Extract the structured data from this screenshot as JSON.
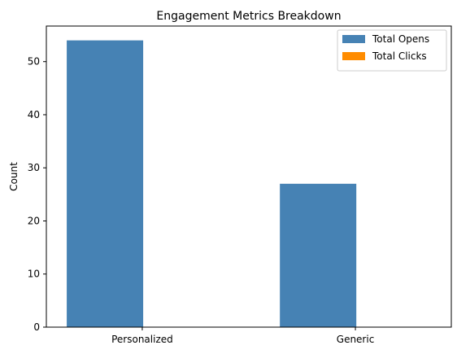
{
  "chart_data": {
    "type": "bar",
    "title": "Engagement Metrics Breakdown",
    "xlabel": "",
    "ylabel": "Count",
    "categories": [
      "Personalized",
      "Generic"
    ],
    "series": [
      {
        "name": "Total Opens",
        "values": [
          54,
          27
        ],
        "color": "#4682b4"
      },
      {
        "name": "Total Clicks",
        "values": [
          0,
          0
        ],
        "color": "#ff8c00"
      }
    ],
    "ylim": [
      0,
      56.7
    ],
    "yticks": [
      0,
      10,
      20,
      30,
      40,
      50
    ],
    "grid": false,
    "legend_position": "top-right"
  }
}
